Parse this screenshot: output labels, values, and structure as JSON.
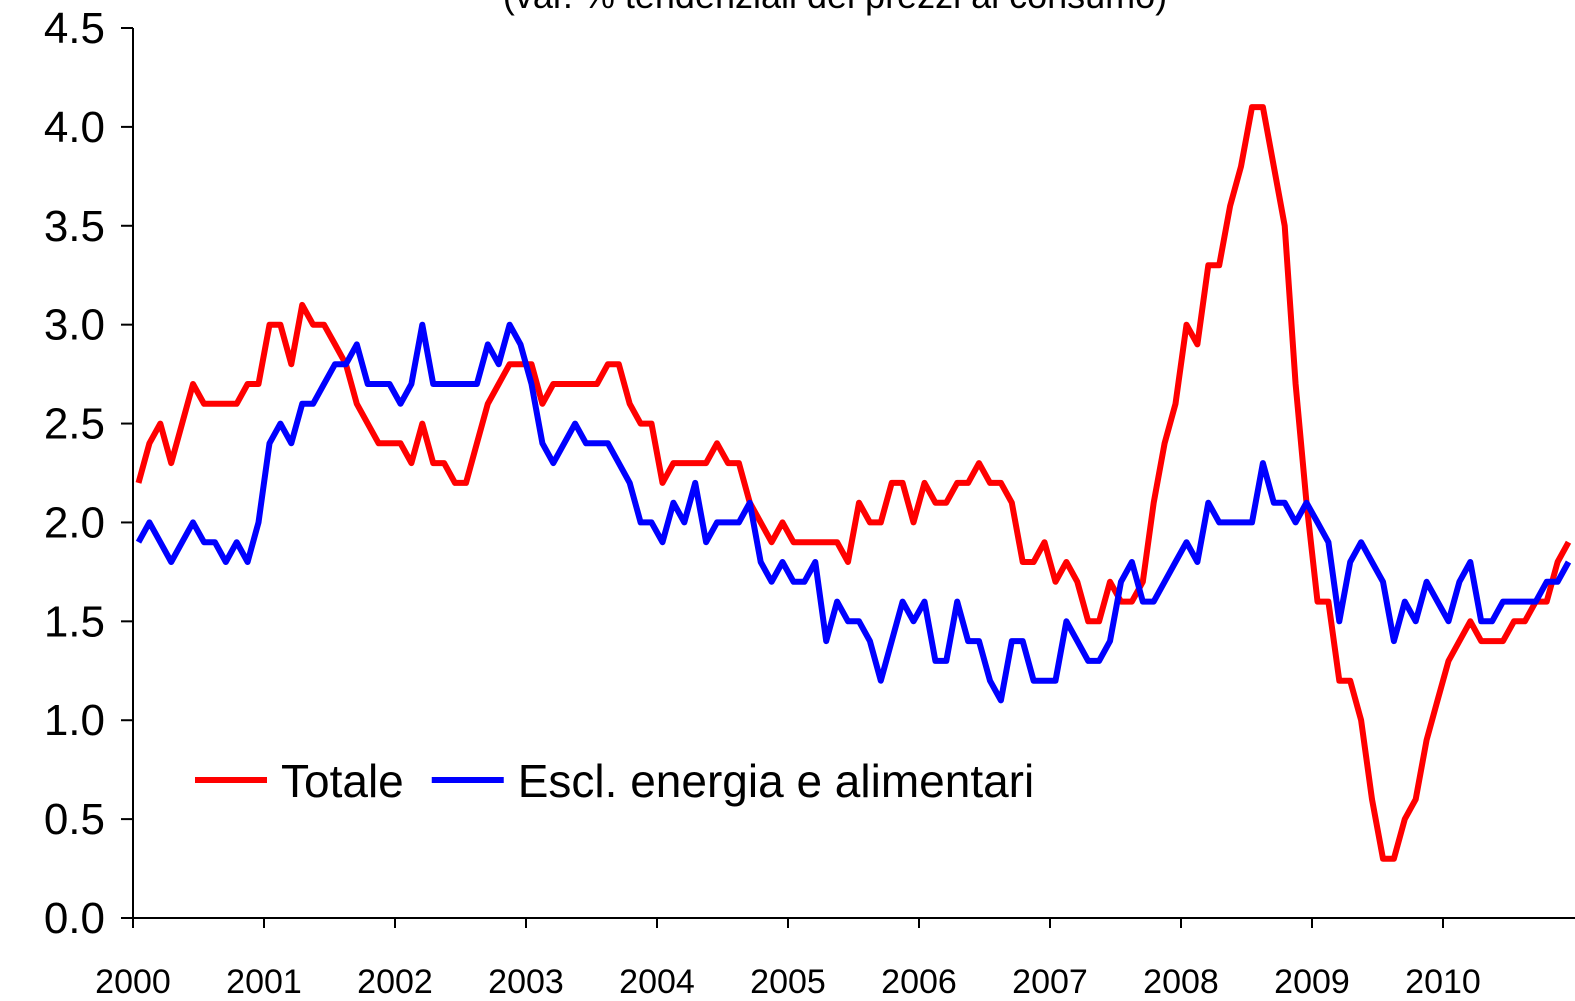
{
  "chart_data": {
    "type": "line",
    "subtitle": "(var. % tendenziali dei prezzi al consumo)",
    "categories": [
      "2000",
      null,
      null,
      null,
      null,
      null,
      null,
      null,
      null,
      null,
      null,
      null,
      "2001",
      null,
      null,
      null,
      null,
      null,
      null,
      null,
      null,
      null,
      null,
      null,
      "2002",
      null,
      null,
      null,
      null,
      null,
      null,
      null,
      null,
      null,
      null,
      null,
      "2003",
      null,
      null,
      null,
      null,
      null,
      null,
      null,
      null,
      null,
      null,
      null,
      "2004",
      null,
      null,
      null,
      null,
      null,
      null,
      null,
      null,
      null,
      null,
      null,
      "2005",
      null,
      null,
      null,
      null,
      null,
      null,
      null,
      null,
      null,
      null,
      null,
      "2006",
      null,
      null,
      null,
      null,
      null,
      null,
      null,
      null,
      null,
      null,
      null,
      "2007",
      null,
      null,
      null,
      null,
      null,
      null,
      null,
      null,
      null,
      null,
      null,
      "2008",
      null,
      null,
      null,
      null,
      null,
      null,
      null,
      null,
      null,
      null,
      null,
      "2009",
      null,
      null,
      null,
      null,
      null,
      null,
      null,
      null,
      null,
      null,
      null,
      "2010",
      null,
      null,
      null,
      null,
      null,
      null,
      null,
      null,
      null,
      null,
      null
    ],
    "series": [
      {
        "name": "Totale",
        "color": "#ff0000",
        "values": [
          2.2,
          2.4,
          2.5,
          2.3,
          2.5,
          2.7,
          2.6,
          2.6,
          2.6,
          2.6,
          2.7,
          2.7,
          3.0,
          3.0,
          2.8,
          3.1,
          3.0,
          3.0,
          2.9,
          2.8,
          2.6,
          2.5,
          2.4,
          2.4,
          2.4,
          2.3,
          2.5,
          2.3,
          2.3,
          2.2,
          2.2,
          2.4,
          2.6,
          2.7,
          2.8,
          2.8,
          2.8,
          2.6,
          2.7,
          2.7,
          2.7,
          2.7,
          2.7,
          2.8,
          2.8,
          2.6,
          2.5,
          2.5,
          2.2,
          2.3,
          2.3,
          2.3,
          2.3,
          2.4,
          2.3,
          2.3,
          2.1,
          2.0,
          1.9,
          2.0,
          1.9,
          1.9,
          1.9,
          1.9,
          1.9,
          1.8,
          2.1,
          2.0,
          2.0,
          2.2,
          2.2,
          2.0,
          2.2,
          2.1,
          2.1,
          2.2,
          2.2,
          2.3,
          2.2,
          2.2,
          2.1,
          1.8,
          1.8,
          1.9,
          1.7,
          1.8,
          1.7,
          1.5,
          1.5,
          1.7,
          1.6,
          1.6,
          1.7,
          2.1,
          2.4,
          2.6,
          3.0,
          2.9,
          3.3,
          3.3,
          3.6,
          3.8,
          4.1,
          4.1,
          3.8,
          3.5,
          2.7,
          2.1,
          1.6,
          1.6,
          1.2,
          1.2,
          1.0,
          0.6,
          0.3,
          0.3,
          0.5,
          0.6,
          0.9,
          1.1,
          1.3,
          1.4,
          1.5,
          1.4,
          1.4,
          1.4,
          1.5,
          1.5,
          1.6,
          1.6,
          1.8,
          1.9
        ]
      },
      {
        "name": "Escl. energia e alimentari",
        "color": "#0000ff",
        "values": [
          1.9,
          2.0,
          1.9,
          1.8,
          1.9,
          2.0,
          1.9,
          1.9,
          1.8,
          1.9,
          1.8,
          2.0,
          2.4,
          2.5,
          2.4,
          2.6,
          2.6,
          2.7,
          2.8,
          2.8,
          2.9,
          2.7,
          2.7,
          2.7,
          2.6,
          2.7,
          3.0,
          2.7,
          2.7,
          2.7,
          2.7,
          2.7,
          2.9,
          2.8,
          3.0,
          2.9,
          2.7,
          2.4,
          2.3,
          2.4,
          2.5,
          2.4,
          2.4,
          2.4,
          2.3,
          2.2,
          2.0,
          2.0,
          1.9,
          2.1,
          2.0,
          2.2,
          1.9,
          2.0,
          2.0,
          2.0,
          2.1,
          1.8,
          1.7,
          1.8,
          1.7,
          1.7,
          1.8,
          1.4,
          1.6,
          1.5,
          1.5,
          1.4,
          1.2,
          1.4,
          1.6,
          1.5,
          1.6,
          1.3,
          1.3,
          1.6,
          1.4,
          1.4,
          1.2,
          1.1,
          1.4,
          1.4,
          1.2,
          1.2,
          1.2,
          1.5,
          1.4,
          1.3,
          1.3,
          1.4,
          1.7,
          1.8,
          1.6,
          1.6,
          1.7,
          1.8,
          1.9,
          1.8,
          2.1,
          2.0,
          2.0,
          2.0,
          2.0,
          2.3,
          2.1,
          2.1,
          2.0,
          2.1,
          2.0,
          1.9,
          1.5,
          1.8,
          1.9,
          1.8,
          1.7,
          1.4,
          1.6,
          1.5,
          1.7,
          1.6,
          1.5,
          1.7,
          1.8,
          1.5,
          1.5,
          1.6,
          1.6,
          1.6,
          1.6,
          1.7,
          1.7,
          1.8
        ]
      }
    ],
    "ylim": [
      0,
      4.5
    ],
    "yticks": [
      {
        "value": 0,
        "label": "0.0"
      },
      0.5,
      {
        "value": 1,
        "label": "1.0"
      },
      1.5,
      {
        "value": 2,
        "label": "2.0"
      },
      2.5,
      {
        "value": 3,
        "label": "3.0"
      },
      3.5,
      {
        "value": 4,
        "label": "4.0"
      },
      4.5
    ],
    "legend": "lower left"
  }
}
